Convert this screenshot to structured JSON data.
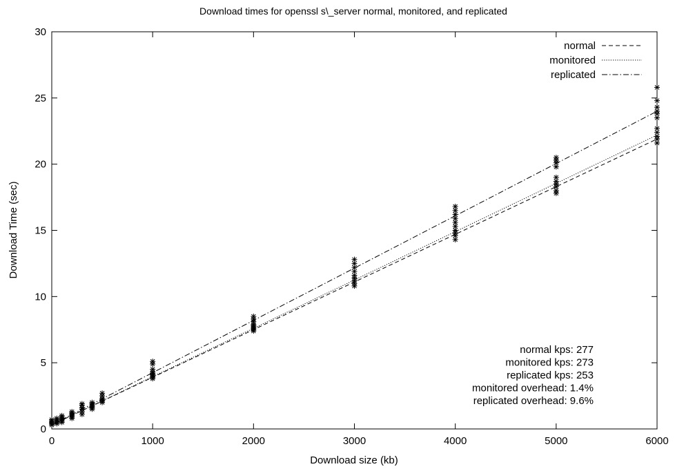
{
  "chart_data": {
    "type": "scatter",
    "title": "Download times for openssl s\\_server normal, monitored, and replicated",
    "xlabel": "Download size (kb)",
    "ylabel": "Download Time (sec)",
    "xlim": [
      0,
      6000
    ],
    "ylim": [
      0,
      30
    ],
    "xticks": [
      0,
      1000,
      2000,
      3000,
      4000,
      5000,
      6000
    ],
    "yticks": [
      0,
      5,
      10,
      15,
      20,
      25,
      30
    ],
    "grid": false,
    "legend_position": "top-right",
    "series": [
      {
        "name": "normal",
        "line_style": "dashed",
        "fit_points": [
          [
            0,
            0.3
          ],
          [
            6000,
            21.9
          ]
        ]
      },
      {
        "name": "monitored",
        "line_style": "dotted",
        "fit_points": [
          [
            0,
            0.3
          ],
          [
            6000,
            22.2
          ]
        ]
      },
      {
        "name": "replicated",
        "line_style": "dashdot",
        "fit_points": [
          [
            0,
            0.3
          ],
          [
            6000,
            24.0
          ]
        ]
      }
    ],
    "point_clusters": [
      {
        "x": 0,
        "y": [
          0.3,
          0.4,
          0.5,
          0.6,
          0.7
        ]
      },
      {
        "x": 50,
        "y": [
          0.4,
          0.5,
          0.6,
          0.7,
          0.8
        ]
      },
      {
        "x": 100,
        "y": [
          0.5,
          0.6,
          0.7,
          0.8,
          0.9,
          1.0
        ]
      },
      {
        "x": 200,
        "y": [
          0.8,
          0.9,
          1.0,
          1.1,
          1.2,
          1.3
        ]
      },
      {
        "x": 300,
        "y": [
          1.1,
          1.3,
          1.5,
          1.6,
          1.8,
          1.9
        ]
      },
      {
        "x": 400,
        "y": [
          1.5,
          1.6,
          1.7,
          1.8,
          1.9,
          2.0
        ]
      },
      {
        "x": 500,
        "y": [
          2.0,
          2.1,
          2.2,
          2.3,
          2.5,
          2.7
        ]
      },
      {
        "x": 1000,
        "y": [
          3.8,
          3.9,
          4.0,
          4.1,
          4.2,
          4.3,
          4.5,
          4.9,
          5.1
        ]
      },
      {
        "x": 2000,
        "y": [
          7.4,
          7.5,
          7.6,
          7.7,
          7.8,
          7.9,
          8.1,
          8.3,
          8.5
        ]
      },
      {
        "x": 3000,
        "y": [
          10.8,
          11.0,
          11.2,
          11.4,
          11.6,
          11.9,
          12.2,
          12.5,
          12.8
        ]
      },
      {
        "x": 4000,
        "y": [
          14.3,
          14.6,
          14.8,
          15.0,
          15.3,
          15.6,
          15.9,
          16.2,
          16.5,
          16.8
        ]
      },
      {
        "x": 5000,
        "y": [
          17.8,
          18.0,
          18.3,
          18.5,
          18.7,
          19.0,
          19.8,
          20.1,
          20.3,
          20.5
        ]
      },
      {
        "x": 6000,
        "y": [
          21.6,
          21.9,
          22.1,
          22.4,
          22.7,
          23.5,
          23.8,
          24.0,
          24.3,
          24.8,
          25.8
        ]
      }
    ],
    "annotations": [
      "normal kps: 277",
      "monitored kps: 273",
      "replicated kps: 253",
      "monitored overhead: 1.4%",
      "replicated overhead: 9.6%"
    ]
  }
}
